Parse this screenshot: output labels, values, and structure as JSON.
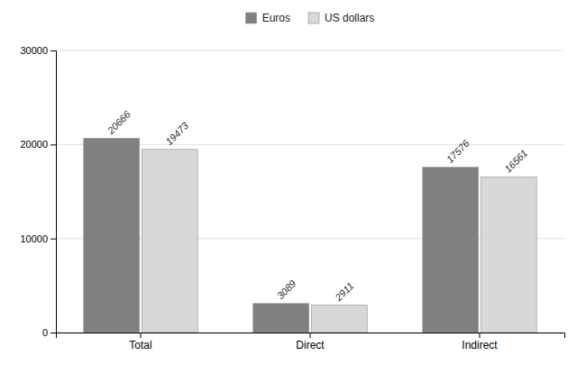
{
  "chart_data": {
    "type": "bar",
    "categories": [
      "Total",
      "Direct",
      "Indirect"
    ],
    "series": [
      {
        "name": "Euros",
        "color": "#808080",
        "values": [
          20666,
          3089,
          17576
        ]
      },
      {
        "name": "US dollars",
        "color": "#d8d8d8",
        "values": [
          19473,
          2911,
          16561
        ]
      }
    ],
    "ylim": [
      0,
      30000
    ],
    "yticks": [
      0,
      10000,
      20000,
      30000
    ],
    "grid": true,
    "legend": "top",
    "data_labels": true
  }
}
